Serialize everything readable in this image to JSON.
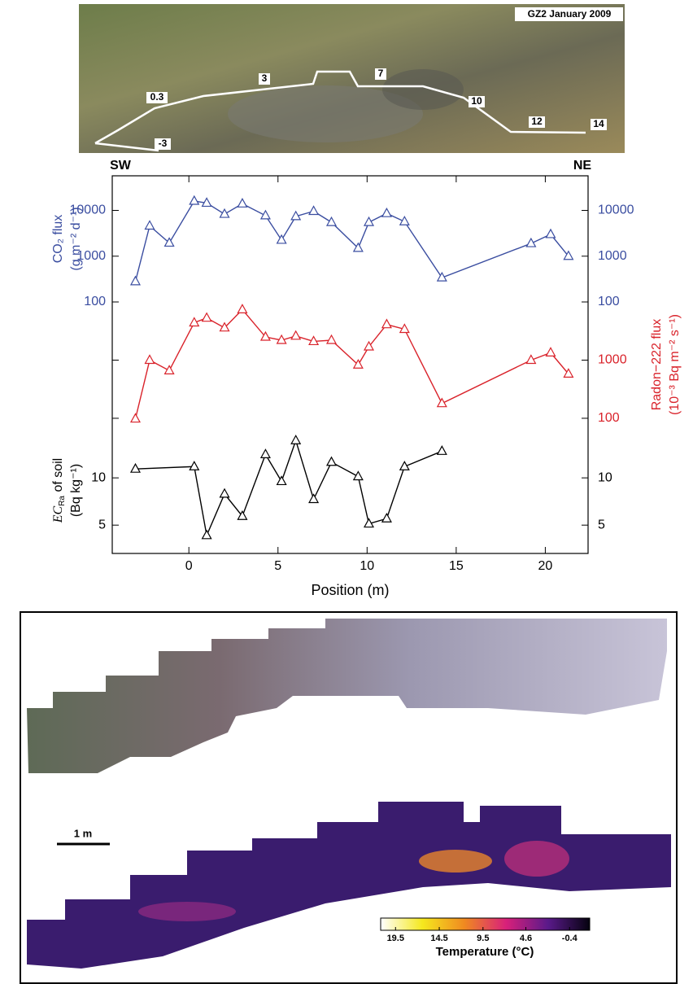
{
  "photo": {
    "title": "GZ2 January 2009",
    "labels": [
      "-3",
      "0.3",
      "3",
      "7",
      "10",
      "12",
      "14"
    ],
    "left": "SW",
    "right": "NE"
  },
  "chart_data": [
    {
      "type": "line",
      "color": "#3a4da0",
      "log": true,
      "ylabel": [
        [
          "CO₂ flux"
        ],
        [
          "(g m⁻² d⁻¹)"
        ]
      ],
      "ylabel_side": "left",
      "ytick_labels": [
        "left",
        "right"
      ],
      "xlim": [
        -4.3,
        22.4
      ],
      "ylim": [
        100,
        57000
      ],
      "yticks": [
        100,
        1000,
        10000
      ],
      "x": [
        -3,
        -2.2,
        -1.1,
        0.3,
        1,
        2,
        3,
        4.3,
        5.2,
        6,
        7,
        8,
        9.5,
        10.1,
        11.1,
        12.1,
        14.2,
        19.2,
        20.3,
        21.3
      ],
      "values": [
        280,
        4600,
        1950,
        16000,
        14500,
        8300,
        14000,
        7700,
        2250,
        7400,
        9600,
        5500,
        1500,
        5500,
        8600,
        5700,
        340,
        1900,
        3000,
        1000
      ]
    },
    {
      "type": "line",
      "color": "#d9222a",
      "log": true,
      "ylabel": [
        [
          "Radon−222 flux"
        ],
        [
          "(10⁻³ Bq m⁻² s⁻¹)"
        ]
      ],
      "ylabel_side": "right",
      "ytick_labels": [
        "right"
      ],
      "xlim": [
        -4.3,
        22.4
      ],
      "ylim": [
        70,
        10000
      ],
      "yticks": [
        100,
        1000
      ],
      "x": [
        -3,
        -2.2,
        -1.1,
        0.3,
        1,
        2,
        3,
        4.3,
        5.2,
        6,
        7,
        8,
        9.5,
        10.1,
        11.1,
        12.1,
        14.2,
        19.2,
        20.3,
        21.3
      ],
      "values": [
        98,
        1000,
        660,
        4400,
        5300,
        3600,
        7400,
        2500,
        2200,
        2600,
        2100,
        2200,
        830,
        1700,
        4100,
        3400,
        180,
        1000,
        1340,
        580
      ]
    },
    {
      "type": "line",
      "color": "#000000",
      "log": true,
      "ylabel": [
        [
          "EC",
          "Ra",
          " of soil"
        ],
        [
          "(Bq kg⁻¹)"
        ]
      ],
      "ylabel_subscript": [
        0,
        1
      ],
      "ylabel_side": "left",
      "ytick_labels": [
        "left",
        "right"
      ],
      "xlim": [
        -4.3,
        22.4
      ],
      "ylim": [
        3.3,
        21
      ],
      "yticks": [
        5,
        10
      ],
      "xticks": [
        0,
        5,
        10,
        15,
        20
      ],
      "xlabel": "Position (m)",
      "x": [
        -3,
        0.3,
        1,
        2,
        3,
        4.3,
        5.2,
        6,
        7,
        8,
        9.5,
        10.1,
        11.1,
        12.1,
        14.2
      ],
      "values": [
        11.4,
        11.8,
        4.3,
        7.9,
        5.7,
        14.1,
        9.5,
        17.3,
        7.3,
        12.6,
        10.2,
        5.1,
        5.5,
        11.8,
        14.8
      ]
    }
  ],
  "thermal": {
    "scale_bar": "1 m",
    "colorbar": {
      "label": "Temperature (°C)",
      "lim": [
        21.2,
        -2.7
      ],
      "ticks": [
        19.5,
        14.5,
        9.5,
        4.6,
        -0.4
      ]
    }
  }
}
